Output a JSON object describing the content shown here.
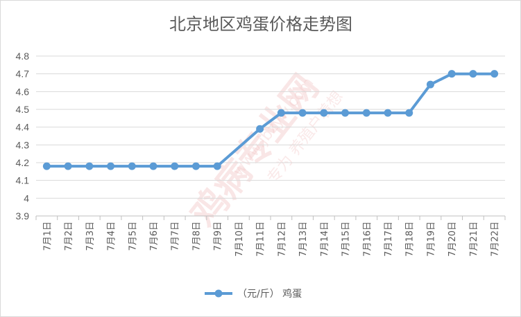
{
  "chart_data": {
    "type": "line",
    "title": "北京地区鸡蛋价格走势图",
    "categories": [
      "7月1日",
      "7月2日",
      "7月3日",
      "7月4日",
      "7月5日",
      "7月6日",
      "7月7日",
      "7月8日",
      "7月9日",
      "7月10日",
      "7月11日",
      "7月12日",
      "7月13日",
      "7月14日",
      "7月15日",
      "7月16日",
      "7月17日",
      "7月18日",
      "7月19日",
      "7月20日",
      "7月21日",
      "7月22日"
    ],
    "series": [
      {
        "name": "（元/斤） 鸡蛋",
        "values": [
          4.18,
          4.18,
          4.18,
          4.18,
          4.18,
          4.18,
          4.18,
          4.18,
          4.18,
          null,
          4.39,
          4.48,
          4.48,
          4.48,
          4.48,
          4.48,
          4.48,
          4.48,
          4.64,
          4.7,
          4.7,
          4.7
        ]
      }
    ],
    "y_ticks": [
      "3.9",
      "4",
      "4.1",
      "4.2",
      "4.3",
      "4.4",
      "4.5",
      "4.6",
      "4.7",
      "4.8"
    ],
    "ylim": [
      3.9,
      4.8
    ],
    "grid": true,
    "legend_position": "bottom",
    "line_color": "#5b9bd5"
  },
  "watermark": {
    "main": "鸡病专业网",
    "url": "www.jbzyw.com",
    "slogan": "专为 养殖户着想"
  }
}
